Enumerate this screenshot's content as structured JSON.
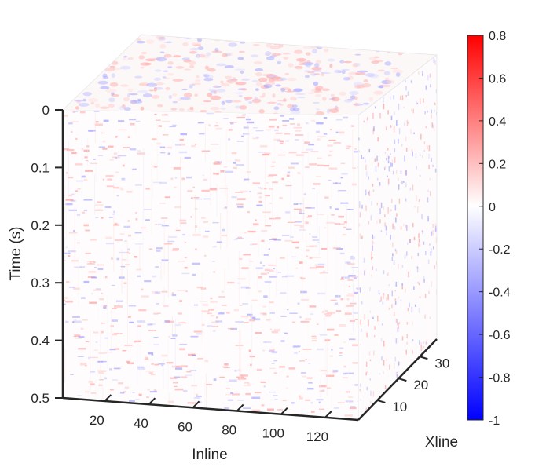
{
  "chart_data": {
    "type": "heatmap",
    "subtype": "3d-seismic-volume-cube",
    "title": "",
    "axes": {
      "inline": {
        "label": "Inline",
        "range": [
          1,
          135
        ],
        "ticks": [
          20,
          40,
          60,
          80,
          100,
          120
        ],
        "tick_labels": [
          "20",
          "40",
          "60",
          "80",
          "100",
          "120"
        ]
      },
      "xline": {
        "label": "Xline",
        "range": [
          1,
          38
        ],
        "ticks": [
          10,
          20,
          30
        ],
        "tick_labels": [
          "10",
          "20",
          "30"
        ]
      },
      "time": {
        "label": "Time (s)",
        "range": [
          0,
          0.5
        ],
        "reversed": true,
        "ticks": [
          0,
          0.1,
          0.2,
          0.3,
          0.4,
          0.5
        ],
        "tick_labels": [
          "0",
          "0.1",
          "0.2",
          "0.3",
          "0.4",
          "0.5"
        ]
      }
    },
    "colorbar": {
      "colormap": "blue-white-red",
      "range": [
        -1,
        0.8
      ],
      "ticks": [
        0.8,
        0.6,
        0.4,
        0.2,
        0,
        -0.2,
        -0.4,
        -0.6,
        -0.8,
        -1
      ],
      "tick_labels": [
        "0.8",
        "0.6",
        "0.4",
        "0.2",
        "0",
        "-0.2",
        "-0.4",
        "-0.6",
        "-0.8",
        "-1"
      ],
      "colors": {
        "max": "#ff0000",
        "zero": "#ffffff",
        "min": "#0000ff"
      }
    },
    "amplitude_note": "Mostly near-zero amplitudes with faint red/blue banded reflections",
    "grid": false
  }
}
